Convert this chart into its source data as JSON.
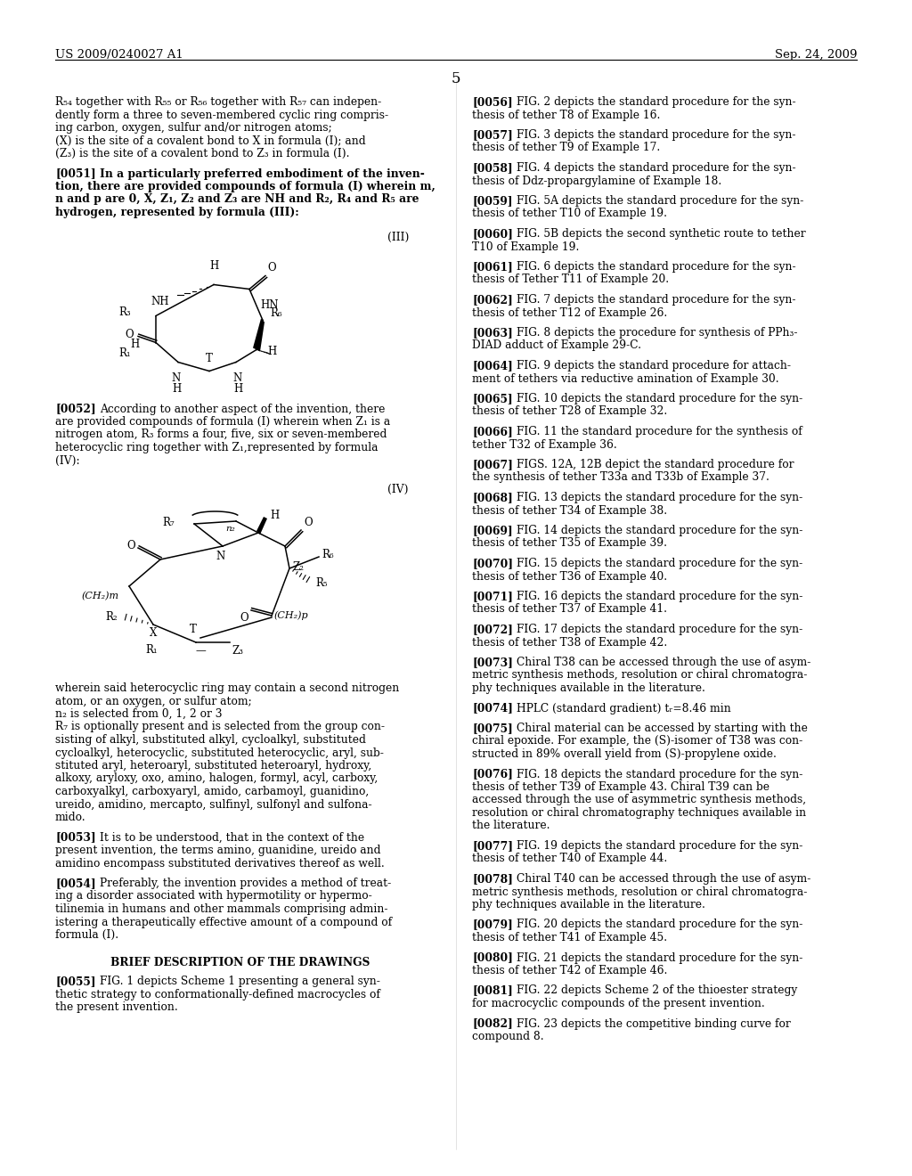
{
  "background_color": "#ffffff",
  "header_left": "US 2009/0240027 A1",
  "header_right": "Sep. 24, 2009",
  "page_number": "5"
}
